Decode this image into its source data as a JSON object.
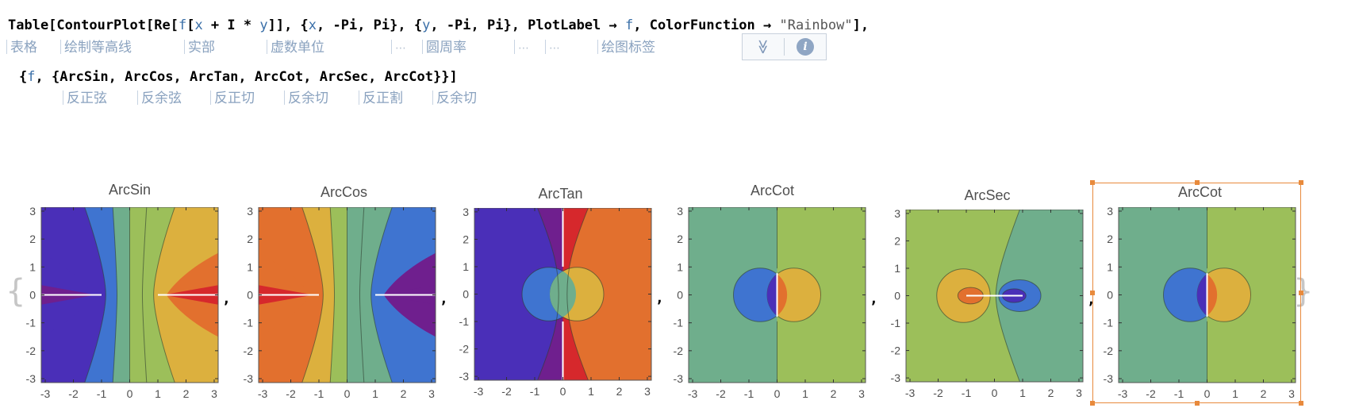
{
  "code": {
    "line1_parts": [
      {
        "t": "Table[ContourPlot[Re[",
        "c": "k"
      },
      {
        "t": "f",
        "c": "v"
      },
      {
        "t": "[",
        "c": "k"
      },
      {
        "t": "x",
        "c": "v"
      },
      {
        "t": " + I * ",
        "c": "k"
      },
      {
        "t": "y",
        "c": "v"
      },
      {
        "t": "]], {",
        "c": "k"
      },
      {
        "t": "x",
        "c": "v"
      },
      {
        "t": ", -Pi, Pi}, {",
        "c": "k"
      },
      {
        "t": "y",
        "c": "v"
      },
      {
        "t": ", -Pi, Pi}, PlotLabel → ",
        "c": "k"
      },
      {
        "t": "f",
        "c": "v"
      },
      {
        "t": ", ColorFunction → ",
        "c": "k"
      },
      {
        "t": "\"Rainbow\"",
        "c": "s"
      },
      {
        "t": "],",
        "c": "k"
      }
    ],
    "line2_parts": [
      {
        "t": "{",
        "c": "k"
      },
      {
        "t": "f",
        "c": "v"
      },
      {
        "t": ", {ArcSin, ArcCos, ArcTan, ArcCot, ArcSec, ArcCot}}]",
        "c": "k"
      }
    ]
  },
  "annotations_line1": [
    "表格",
    "绘制等高线",
    "实部",
    "虚数单位",
    "⋯",
    "圆周率",
    "⋯",
    "⋯",
    "绘图标签"
  ],
  "annotations_line2": [
    "反正弦",
    "反余弦",
    "反正切",
    "反余切",
    "反正割",
    "反余切"
  ],
  "toolbar": {
    "expand_icon": "double-chevron-down-icon",
    "info_icon": "info-icon",
    "expand_glyph": "≫",
    "info_glyph": "i"
  },
  "output": {
    "open_brace": "{",
    "close_brace": "}",
    "separator": ",",
    "plots": [
      {
        "label": "ArcSin",
        "kind": "arcsin",
        "selected": false
      },
      {
        "label": "ArcCos",
        "kind": "arccos",
        "selected": false
      },
      {
        "label": "ArcTan",
        "kind": "arctan",
        "selected": false
      },
      {
        "label": "ArcCot",
        "kind": "arccot",
        "selected": false
      },
      {
        "label": "ArcSec",
        "kind": "arcsec",
        "selected": false
      },
      {
        "label": "ArcCot",
        "kind": "arccot",
        "selected": true
      }
    ],
    "ticks": [
      "-3",
      "-2",
      "-1",
      "0",
      "1",
      "2",
      "3"
    ],
    "tick_values": [
      -3,
      -2,
      -1,
      0,
      1,
      2,
      3
    ],
    "axis_range": [
      -3.14159,
      3.14159
    ]
  },
  "colors": {
    "purple": "#4a2fb8",
    "blue": "#3f74d0",
    "teal": "#5faf95",
    "green": "#9cbf5a",
    "yellow": "#dcb03e",
    "orange": "#e2702e",
    "red": "#d6282c",
    "violet": "#6f1f8e",
    "tealgreen": "#6fae8c",
    "selection": "#e88a3c"
  }
}
